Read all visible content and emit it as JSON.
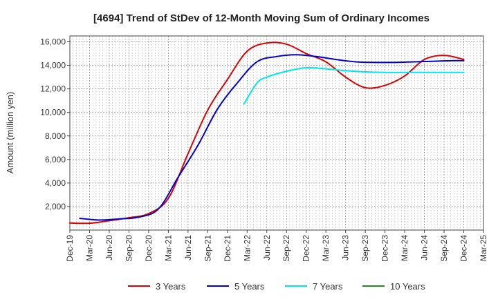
{
  "chart_data": {
    "type": "line",
    "title": "[4694]  Trend of StDev of 12-Month Moving Sum of Ordinary Incomes",
    "xlabel": "",
    "ylabel": "Amount (million yen)",
    "ylim": [
      0,
      16500
    ],
    "yticks": [
      2000,
      4000,
      6000,
      8000,
      10000,
      12000,
      14000,
      16000
    ],
    "ytick_labels": [
      "2,000",
      "4,000",
      "6,000",
      "8,000",
      "10,000",
      "12,000",
      "14,000",
      "16,000"
    ],
    "xtick_labels": [
      "Dec-19",
      "Mar-20",
      "Jun-20",
      "Sep-20",
      "Dec-20",
      "Mar-21",
      "Jun-21",
      "Sep-21",
      "Dec-21",
      "Mar-22",
      "Jun-22",
      "Sep-22",
      "Dec-22",
      "Mar-23",
      "Jun-23",
      "Sep-23",
      "Dec-23",
      "Mar-24",
      "Jun-24",
      "Sep-24",
      "Dec-24",
      "Mar-25"
    ],
    "grid": true,
    "legend_position": "bottom",
    "series": [
      {
        "name": "3 Years",
        "color": "#dd0000",
        "points": [
          [
            0,
            600
          ],
          [
            1,
            580
          ],
          [
            2,
            800
          ],
          [
            3,
            1050
          ],
          [
            4,
            1400
          ],
          [
            5,
            2700
          ],
          [
            6,
            6500
          ],
          [
            7,
            10200
          ],
          [
            8,
            12800
          ],
          [
            9,
            15200
          ],
          [
            10,
            15900
          ],
          [
            11,
            15800
          ],
          [
            12,
            15000
          ],
          [
            13,
            14300
          ],
          [
            14,
            13000
          ],
          [
            15,
            12100
          ],
          [
            16,
            12300
          ],
          [
            17,
            13100
          ],
          [
            18,
            14500
          ],
          [
            19,
            14850
          ],
          [
            20,
            14500
          ]
        ]
      },
      {
        "name": "5 Years",
        "color": "#0000cc",
        "points": [
          [
            0.5,
            1000
          ],
          [
            1.5,
            850
          ],
          [
            2.5,
            950
          ],
          [
            3.5,
            1100
          ],
          [
            4.5,
            1800
          ],
          [
            5.5,
            4500
          ],
          [
            6.5,
            7200
          ],
          [
            7.5,
            10300
          ],
          [
            8.5,
            12500
          ],
          [
            9.5,
            14300
          ],
          [
            10.5,
            14750
          ],
          [
            11.5,
            14900
          ],
          [
            12.5,
            14750
          ],
          [
            13.5,
            14500
          ],
          [
            14.5,
            14300
          ],
          [
            15.5,
            14250
          ],
          [
            16.5,
            14250
          ],
          [
            17.5,
            14300
          ],
          [
            18.5,
            14350
          ],
          [
            19.5,
            14400
          ],
          [
            20,
            14400
          ]
        ]
      },
      {
        "name": "7 Years",
        "color": "#00e5ee",
        "points": [
          [
            8.83,
            10700
          ],
          [
            9.5,
            12500
          ],
          [
            10,
            13000
          ],
          [
            11,
            13500
          ],
          [
            12,
            13800
          ],
          [
            13,
            13700
          ],
          [
            14,
            13550
          ],
          [
            15,
            13450
          ],
          [
            16,
            13400
          ],
          [
            17,
            13400
          ],
          [
            18,
            13400
          ],
          [
            19,
            13400
          ],
          [
            20,
            13400
          ]
        ]
      },
      {
        "name": "10 Years",
        "color": "#228b22",
        "points": []
      }
    ]
  }
}
